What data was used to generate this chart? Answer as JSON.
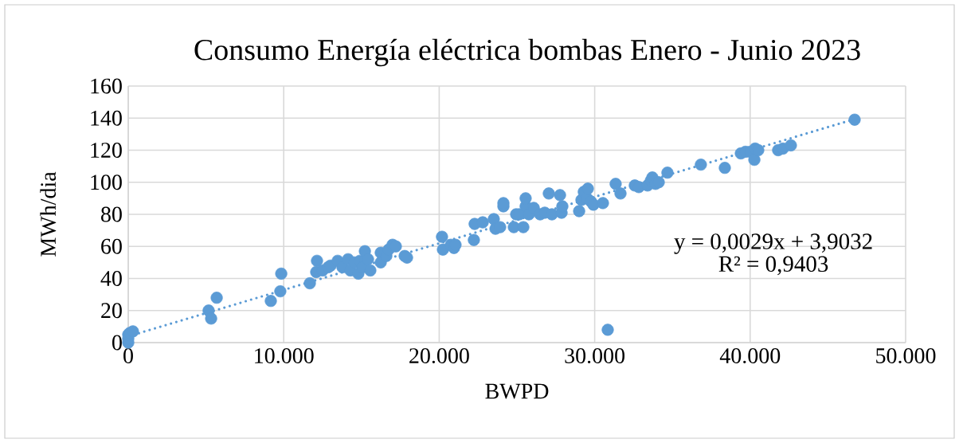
{
  "chart_data": {
    "type": "scatter",
    "title": "Consumo Energía eléctrica bombas Enero - Junio 2023",
    "xlabel": "BWPD",
    "ylabel": "MWh/dia",
    "annotations": [
      "y = 0,0029x + 3,9032",
      "R² = 0,9403"
    ],
    "xlim": [
      0,
      50000
    ],
    "ylim": [
      0,
      160
    ],
    "xticks": [
      0,
      {
        "value": 10000,
        "label": "10.000"
      },
      {
        "value": 20000,
        "label": "20.000"
      },
      {
        "value": 30000,
        "label": "30.000"
      },
      {
        "value": 40000,
        "label": "40.000"
      },
      {
        "value": 50000,
        "label": "50.000"
      }
    ],
    "yticks": [
      0,
      20,
      40,
      60,
      80,
      100,
      120,
      140,
      160
    ],
    "grid": true,
    "series": [
      {
        "type": "scatter",
        "marker": "circle",
        "color": "#5b9bd5",
        "x": [
          0,
          0,
          0,
          100,
          300,
          5170,
          5330,
          5690,
          9170,
          9780,
          9840,
          11680,
          12140,
          12090,
          12500,
          12860,
          13010,
          13470,
          13780,
          14140,
          14290,
          14550,
          14800,
          14900,
          15060,
          15220,
          15420,
          15570,
          16240,
          16240,
          16600,
          16750,
          17000,
          17210,
          17780,
          17930,
          20180,
          20240,
          20750,
          20950,
          21050,
          22230,
          22280,
          22800,
          23510,
          23620,
          23920,
          24130,
          24130,
          24800,
          24950,
          25150,
          25410,
          25560,
          25560,
          25770,
          26080,
          26490,
          26790,
          27050,
          27250,
          27770,
          27870,
          27920,
          29000,
          29150,
          29300,
          29510,
          29560,
          29760,
          29920,
          30530,
          30840,
          31350,
          31660,
          32580,
          32840,
          33400,
          33610,
          33710,
          33910,
          34120,
          34680,
          36830,
          38370,
          39400,
          39700,
          40010,
          40320,
          40270,
          40520,
          41800,
          42110,
          42620,
          46720
        ],
        "values": [
          0,
          2.5,
          5,
          6,
          7,
          20,
          15,
          28,
          26,
          32,
          43,
          37,
          51,
          44,
          45,
          47,
          48,
          51,
          47,
          52,
          45,
          50,
          43,
          51,
          47,
          57,
          52,
          45,
          56,
          50,
          54,
          58,
          61,
          60,
          54,
          53,
          66,
          58,
          61,
          59,
          61,
          64,
          74,
          75,
          77,
          71,
          72,
          85,
          87,
          72,
          80,
          80,
          72,
          85,
          90,
          80,
          84,
          80,
          81,
          93,
          80,
          92,
          81,
          85,
          82,
          89,
          94,
          90,
          96,
          88,
          86,
          87,
          8,
          99,
          93,
          98,
          97,
          98,
          101,
          103,
          99,
          100,
          106,
          111,
          109,
          118,
          119,
          119,
          121,
          114,
          120,
          120,
          121,
          123,
          139
        ]
      },
      {
        "type": "line",
        "marker": "none",
        "line_style": "dotted",
        "color": "#5b9bd5",
        "x": [
          0,
          46720
        ],
        "values": [
          3.9,
          139.4
        ]
      }
    ]
  }
}
